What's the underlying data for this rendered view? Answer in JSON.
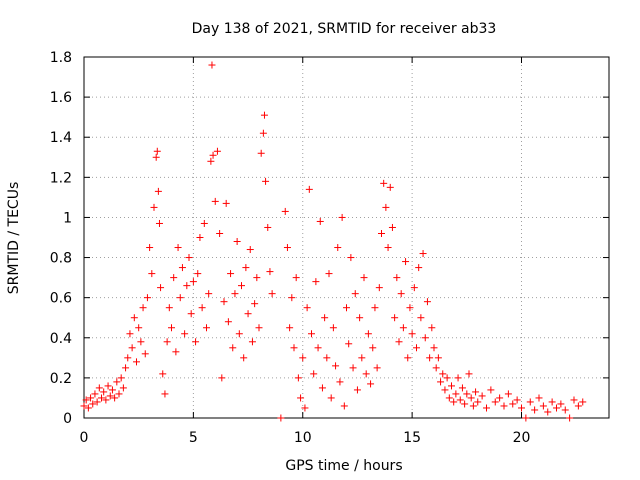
{
  "chart_data": {
    "type": "scatter",
    "title": "Day 138 of 2021, SRMTID for receiver ab33",
    "xlabel": "GPS time / hours",
    "ylabel": "SRMTID / TECUs",
    "xlim": [
      0,
      24
    ],
    "ylim": [
      0,
      1.8
    ],
    "xticks": [
      0,
      5,
      10,
      15,
      20
    ],
    "xtick_labels": [
      "0",
      "5",
      "10",
      "15",
      "20"
    ],
    "yticks": [
      0,
      0.2,
      0.4,
      0.6,
      0.8,
      1,
      1.2,
      1.4,
      1.6,
      1.8
    ],
    "ytick_labels": [
      "0",
      "0.2",
      "0.4",
      "0.6",
      "0.8",
      "1",
      "1.2",
      "1.4",
      "1.6",
      "1.8"
    ],
    "grid": true,
    "marker": "+",
    "color": "#ff0000",
    "series": [
      {
        "name": "SRMTID",
        "points": [
          [
            0.0,
            0.06
          ],
          [
            0.1,
            0.09
          ],
          [
            0.2,
            0.05
          ],
          [
            0.3,
            0.1
          ],
          [
            0.4,
            0.07
          ],
          [
            0.5,
            0.12
          ],
          [
            0.6,
            0.08
          ],
          [
            0.7,
            0.15
          ],
          [
            0.8,
            0.1
          ],
          [
            0.9,
            0.13
          ],
          [
            1.0,
            0.09
          ],
          [
            1.1,
            0.16
          ],
          [
            1.2,
            0.11
          ],
          [
            1.3,
            0.14
          ],
          [
            1.4,
            0.1
          ],
          [
            1.5,
            0.18
          ],
          [
            1.6,
            0.12
          ],
          [
            1.7,
            0.2
          ],
          [
            1.8,
            0.15
          ],
          [
            1.9,
            0.25
          ],
          [
            2.0,
            0.3
          ],
          [
            2.1,
            0.42
          ],
          [
            2.2,
            0.35
          ],
          [
            2.3,
            0.5
          ],
          [
            2.4,
            0.28
          ],
          [
            2.5,
            0.45
          ],
          [
            2.6,
            0.38
          ],
          [
            2.7,
            0.55
          ],
          [
            2.8,
            0.32
          ],
          [
            2.9,
            0.6
          ],
          [
            3.0,
            0.85
          ],
          [
            3.1,
            0.72
          ],
          [
            3.2,
            1.05
          ],
          [
            3.3,
            1.3
          ],
          [
            3.35,
            1.33
          ],
          [
            3.4,
            1.13
          ],
          [
            3.45,
            0.97
          ],
          [
            3.5,
            0.65
          ],
          [
            3.6,
            0.22
          ],
          [
            3.7,
            0.12
          ],
          [
            3.8,
            0.38
          ],
          [
            3.9,
            0.55
          ],
          [
            4.0,
            0.45
          ],
          [
            4.1,
            0.7
          ],
          [
            4.2,
            0.33
          ],
          [
            4.3,
            0.85
          ],
          [
            4.4,
            0.6
          ],
          [
            4.5,
            0.75
          ],
          [
            4.6,
            0.42
          ],
          [
            4.7,
            0.66
          ],
          [
            4.8,
            0.8
          ],
          [
            4.9,
            0.52
          ],
          [
            5.0,
            0.68
          ],
          [
            5.1,
            0.38
          ],
          [
            5.2,
            0.72
          ],
          [
            5.3,
            0.9
          ],
          [
            5.4,
            0.55
          ],
          [
            5.5,
            0.97
          ],
          [
            5.6,
            0.45
          ],
          [
            5.7,
            0.62
          ],
          [
            5.8,
            1.28
          ],
          [
            5.85,
            1.76
          ],
          [
            5.9,
            1.31
          ],
          [
            6.0,
            1.08
          ],
          [
            6.1,
            1.33
          ],
          [
            6.2,
            0.92
          ],
          [
            6.3,
            0.2
          ],
          [
            6.4,
            0.58
          ],
          [
            6.5,
            1.07
          ],
          [
            6.6,
            0.48
          ],
          [
            6.7,
            0.72
          ],
          [
            6.8,
            0.35
          ],
          [
            6.9,
            0.62
          ],
          [
            7.0,
            0.88
          ],
          [
            7.1,
            0.42
          ],
          [
            7.2,
            0.66
          ],
          [
            7.3,
            0.3
          ],
          [
            7.4,
            0.75
          ],
          [
            7.5,
            0.52
          ],
          [
            7.6,
            0.84
          ],
          [
            7.7,
            0.38
          ],
          [
            7.8,
            0.57
          ],
          [
            7.9,
            0.7
          ],
          [
            8.0,
            0.45
          ],
          [
            8.1,
            1.32
          ],
          [
            8.2,
            1.42
          ],
          [
            8.25,
            1.51
          ],
          [
            8.3,
            1.18
          ],
          [
            8.4,
            0.95
          ],
          [
            8.5,
            0.73
          ],
          [
            8.6,
            0.62
          ],
          [
            9.0,
            0.0
          ],
          [
            9.2,
            1.03
          ],
          [
            9.3,
            0.85
          ],
          [
            9.4,
            0.45
          ],
          [
            9.5,
            0.6
          ],
          [
            9.6,
            0.35
          ],
          [
            9.7,
            0.7
          ],
          [
            9.8,
            0.2
          ],
          [
            9.9,
            0.1
          ],
          [
            10.0,
            0.3
          ],
          [
            10.1,
            0.05
          ],
          [
            10.2,
            0.55
          ],
          [
            10.3,
            1.14
          ],
          [
            10.4,
            0.42
          ],
          [
            10.5,
            0.22
          ],
          [
            10.6,
            0.68
          ],
          [
            10.7,
            0.35
          ],
          [
            10.8,
            0.98
          ],
          [
            10.9,
            0.15
          ],
          [
            11.0,
            0.5
          ],
          [
            11.1,
            0.3
          ],
          [
            11.2,
            0.72
          ],
          [
            11.3,
            0.1
          ],
          [
            11.4,
            0.45
          ],
          [
            11.5,
            0.26
          ],
          [
            11.6,
            0.85
          ],
          [
            11.7,
            0.18
          ],
          [
            11.8,
            1.0
          ],
          [
            11.9,
            0.06
          ],
          [
            12.0,
            0.55
          ],
          [
            12.1,
            0.37
          ],
          [
            12.2,
            0.8
          ],
          [
            12.3,
            0.25
          ],
          [
            12.4,
            0.62
          ],
          [
            12.5,
            0.14
          ],
          [
            12.6,
            0.5
          ],
          [
            12.7,
            0.3
          ],
          [
            12.8,
            0.7
          ],
          [
            12.9,
            0.22
          ],
          [
            13.0,
            0.42
          ],
          [
            13.1,
            0.17
          ],
          [
            13.2,
            0.35
          ],
          [
            13.3,
            0.55
          ],
          [
            13.4,
            0.25
          ],
          [
            13.5,
            0.65
          ],
          [
            13.6,
            0.92
          ],
          [
            13.7,
            1.17
          ],
          [
            13.8,
            1.05
          ],
          [
            13.9,
            0.85
          ],
          [
            14.0,
            1.15
          ],
          [
            14.1,
            0.95
          ],
          [
            14.2,
            0.5
          ],
          [
            14.3,
            0.7
          ],
          [
            14.4,
            0.38
          ],
          [
            14.5,
            0.62
          ],
          [
            14.6,
            0.45
          ],
          [
            14.7,
            0.78
          ],
          [
            14.8,
            0.3
          ],
          [
            14.9,
            0.55
          ],
          [
            15.0,
            0.42
          ],
          [
            15.1,
            0.65
          ],
          [
            15.2,
            0.35
          ],
          [
            15.3,
            0.75
          ],
          [
            15.4,
            0.5
          ],
          [
            15.5,
            0.82
          ],
          [
            15.6,
            0.4
          ],
          [
            15.7,
            0.58
          ],
          [
            15.8,
            0.3
          ],
          [
            15.9,
            0.45
          ],
          [
            16.0,
            0.35
          ],
          [
            16.1,
            0.25
          ],
          [
            16.2,
            0.3
          ],
          [
            16.3,
            0.18
          ],
          [
            16.4,
            0.22
          ],
          [
            16.5,
            0.14
          ],
          [
            16.6,
            0.2
          ],
          [
            16.7,
            0.1
          ],
          [
            16.8,
            0.16
          ],
          [
            16.9,
            0.08
          ],
          [
            17.0,
            0.12
          ],
          [
            17.1,
            0.2
          ],
          [
            17.2,
            0.09
          ],
          [
            17.3,
            0.15
          ],
          [
            17.4,
            0.07
          ],
          [
            17.5,
            0.12
          ],
          [
            17.6,
            0.22
          ],
          [
            17.7,
            0.1
          ],
          [
            17.8,
            0.06
          ],
          [
            17.9,
            0.13
          ],
          [
            18.0,
            0.08
          ],
          [
            18.2,
            0.11
          ],
          [
            18.4,
            0.05
          ],
          [
            18.6,
            0.14
          ],
          [
            18.8,
            0.08
          ],
          [
            19.0,
            0.1
          ],
          [
            19.2,
            0.06
          ],
          [
            19.4,
            0.12
          ],
          [
            19.6,
            0.07
          ],
          [
            19.8,
            0.09
          ],
          [
            20.0,
            0.05
          ],
          [
            20.2,
            0.0
          ],
          [
            20.4,
            0.08
          ],
          [
            20.6,
            0.04
          ],
          [
            20.8,
            0.1
          ],
          [
            21.0,
            0.06
          ],
          [
            21.2,
            0.03
          ],
          [
            21.4,
            0.08
          ],
          [
            21.6,
            0.05
          ],
          [
            21.8,
            0.07
          ],
          [
            22.0,
            0.04
          ],
          [
            22.2,
            0.0
          ],
          [
            22.4,
            0.09
          ],
          [
            22.6,
            0.06
          ],
          [
            22.8,
            0.08
          ]
        ]
      }
    ]
  }
}
